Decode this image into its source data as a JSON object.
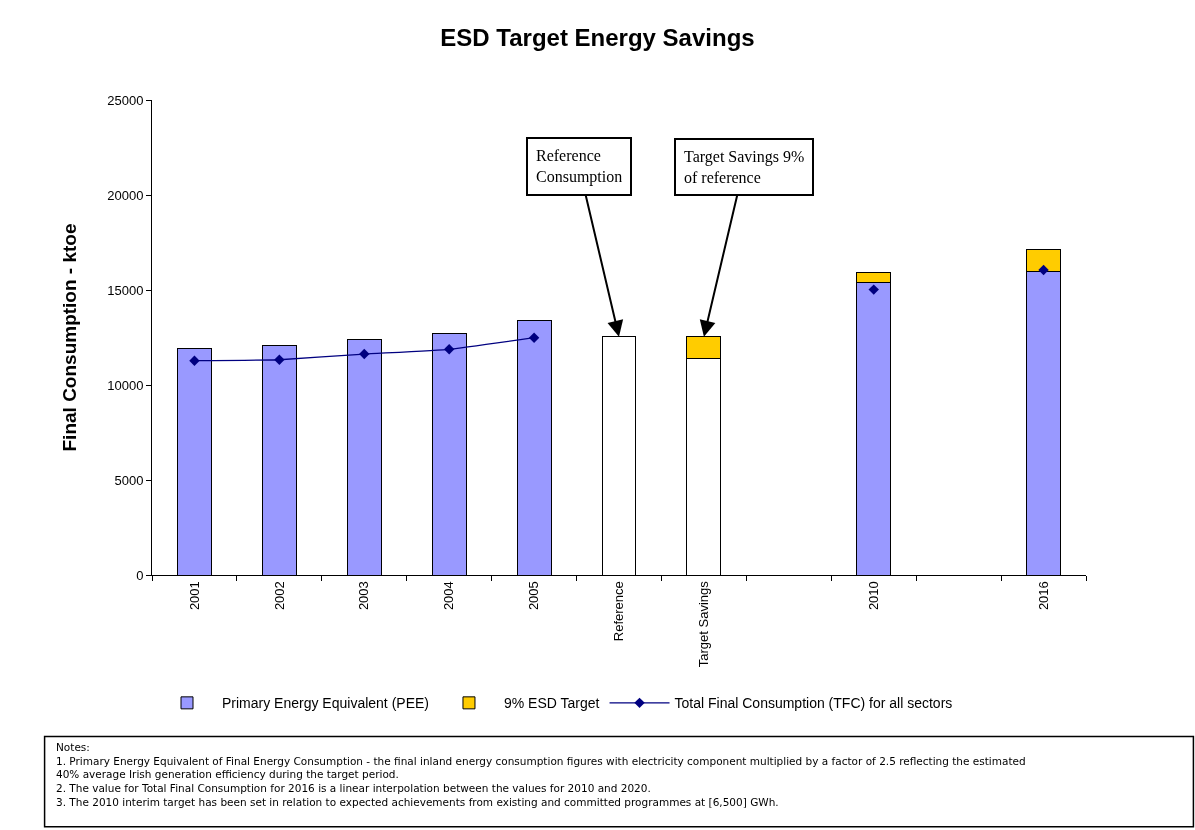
{
  "chart_data": {
    "type": "bar",
    "title": "ESD Target Energy Savings",
    "ylabel": "Final Consumption - ktoe",
    "categories": [
      "2001",
      "2002",
      "2003",
      "2004",
      "2005",
      "Reference",
      "Target Savings",
      null,
      "2010",
      null,
      "2016"
    ],
    "stacked": true,
    "series": [
      {
        "name": "Primary Energy Equivalent (PEE)",
        "color": "#9999ff",
        "values": [
          11930,
          12070,
          12420,
          12720,
          13390,
          null,
          null,
          null,
          15420,
          null,
          16000
        ]
      },
      {
        "color": "#ffffff",
        "values": [
          null,
          null,
          null,
          null,
          null,
          12540,
          11390,
          null,
          null,
          null,
          null
        ]
      },
      {
        "name": "9% ESD Target",
        "color": "#ffcc00",
        "values": [
          null,
          null,
          null,
          null,
          null,
          null,
          1150,
          null,
          510,
          null,
          1140
        ]
      },
      {
        "name": "Total Final Consumption (TFC) for all sectors",
        "type": "line",
        "color": "#000080",
        "marker": "diamond",
        "values": [
          11280,
          11330,
          11630,
          11880,
          12490,
          null,
          null,
          null,
          15020,
          null,
          16050
        ]
      }
    ],
    "ylim": [
      0,
      25000
    ],
    "yticks": [
      0,
      5000,
      10000,
      15000,
      20000,
      25000
    ],
    "grid": false,
    "legend": "bottom",
    "annotations": [
      {
        "text": "Reference\nConsumption",
        "x": "Reference",
        "y": 12540
      },
      {
        "text": "Target Savings 9%\nof reference",
        "x": "Target Savings",
        "y": 12540
      },
      "Notes:\n1. Primary Energy Equivalent of Final Energy Consumption - the final inland energy consumption figures with electricity component multiplied by a factor of 2.5 reflecting the estimated\n40% average Irish generation efficiency during the target period.\n2. The value for Total Final Consumption for 2016 is a linear interpolation between the values for 2010 and 2020.\n3. The 2010 interim target has been set in relation to expected achievements from existing and committed programmes at [6,500] GWh."
    ]
  }
}
